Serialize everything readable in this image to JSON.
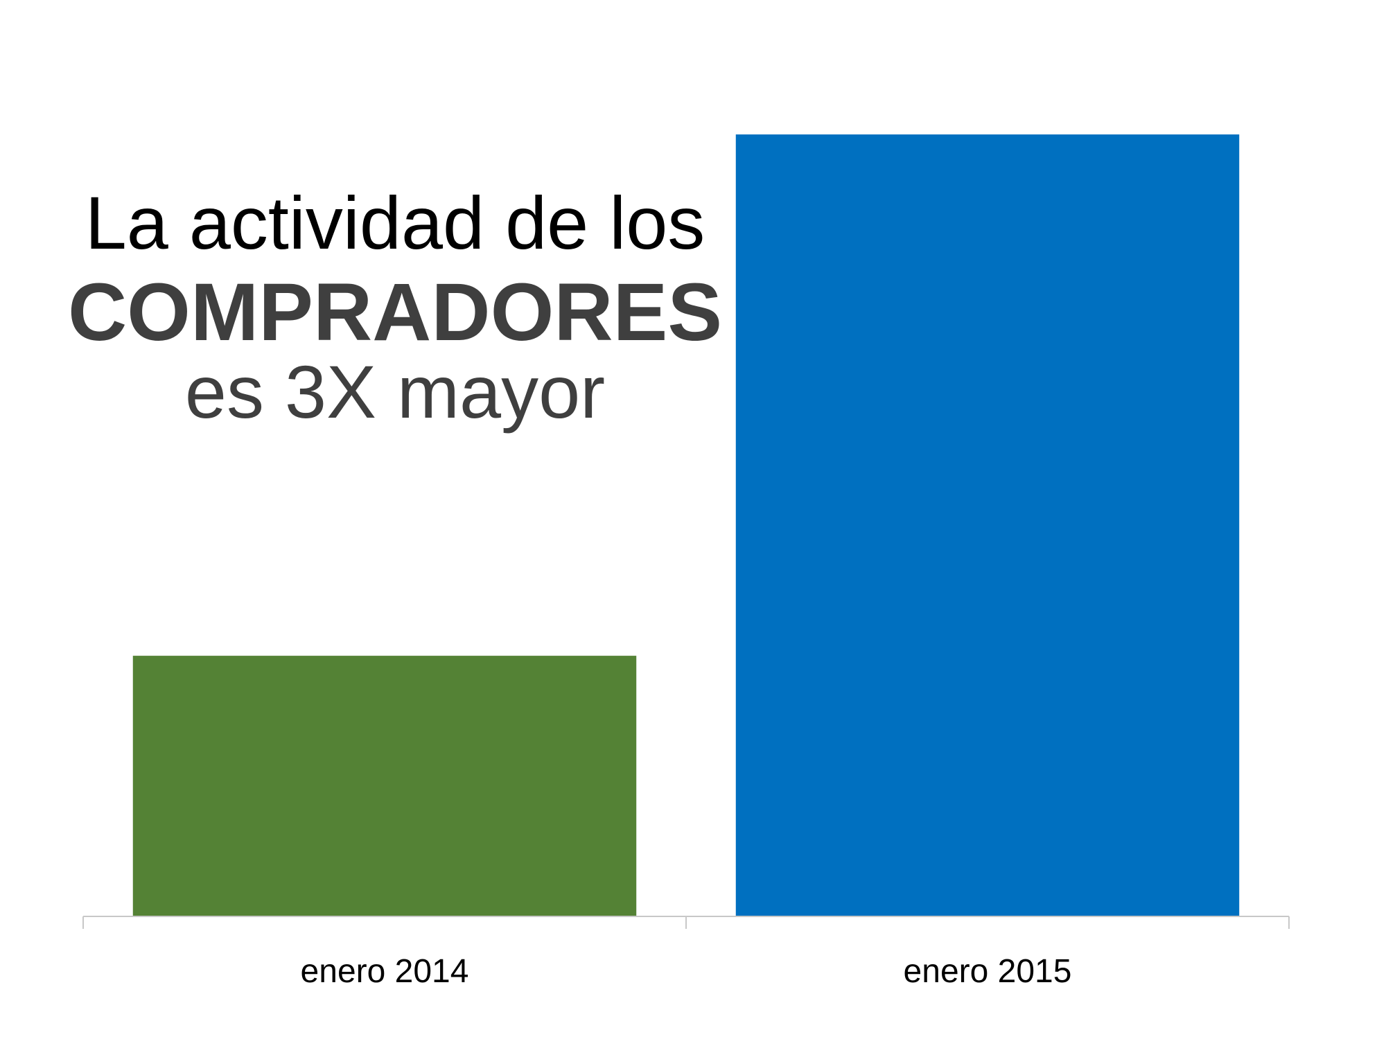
{
  "headline": {
    "line1": "La actividad de los",
    "line2": "COMPRADORES",
    "line3": "es 3X mayor"
  },
  "colors": {
    "text_dark": "#000000",
    "text_gray": "#3f3f3f",
    "axis": "#c8c8c8"
  },
  "chart_data": {
    "type": "bar",
    "categories": [
      "enero 2014",
      "enero 2015"
    ],
    "values": [
      1,
      3
    ],
    "bar_colors": [
      "#548235",
      "#0070c0"
    ],
    "ylim": [
      0,
      3.08
    ],
    "grid": false,
    "legend": "none"
  }
}
